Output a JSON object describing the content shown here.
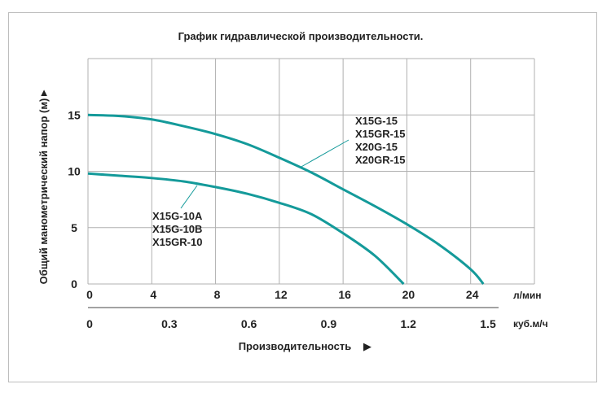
{
  "chart_data": {
    "type": "line",
    "title": "График гидравлической производительности.",
    "xlabel": "Производительность",
    "ylabel": "Общий манометрический напор (м)",
    "grid": true,
    "x_primary": {
      "unit": "л/мин",
      "ticks": [
        0,
        4,
        8,
        12,
        16,
        20,
        24
      ],
      "tick_labels": [
        "0",
        "4",
        "8",
        "12",
        "16",
        "20",
        "24"
      ],
      "range": [
        0,
        28
      ]
    },
    "x_secondary": {
      "unit": "куб.м/ч",
      "ticks": [
        0,
        0.3,
        0.6,
        0.9,
        1.2,
        1.5
      ],
      "tick_labels": [
        "0",
        "0.3",
        "0.6",
        "0.9",
        "1.2",
        "1.5"
      ]
    },
    "y": {
      "ticks": [
        0,
        5,
        10,
        15
      ],
      "tick_labels": [
        "0",
        "5",
        "10",
        "15"
      ],
      "range": [
        0,
        20
      ]
    },
    "series": [
      {
        "name": "X15G-15 X15GR-15 X20G-15 X20GR-15",
        "labels": [
          "X15G-15",
          "X15GR-15",
          "X20G-15",
          "X20GR-15"
        ],
        "color": "#149a9a",
        "x": [
          0,
          2,
          4,
          6,
          8,
          10,
          12,
          14,
          16,
          18,
          20,
          22,
          24,
          24.8
        ],
        "y": [
          15,
          14.9,
          14.6,
          14.0,
          13.3,
          12.4,
          11.2,
          9.9,
          8.4,
          6.9,
          5.3,
          3.5,
          1.3,
          0
        ]
      },
      {
        "name": "X15G-10A X15G-10B X15GR-10",
        "labels": [
          "X15G-10A",
          "X15G-10B",
          "X15GR-10"
        ],
        "color": "#149a9a",
        "x": [
          0,
          2,
          4,
          6,
          8,
          10,
          12,
          14,
          16,
          18,
          19.8
        ],
        "y": [
          9.8,
          9.6,
          9.4,
          9.1,
          8.6,
          8.0,
          7.2,
          6.2,
          4.5,
          2.5,
          0
        ]
      }
    ]
  }
}
